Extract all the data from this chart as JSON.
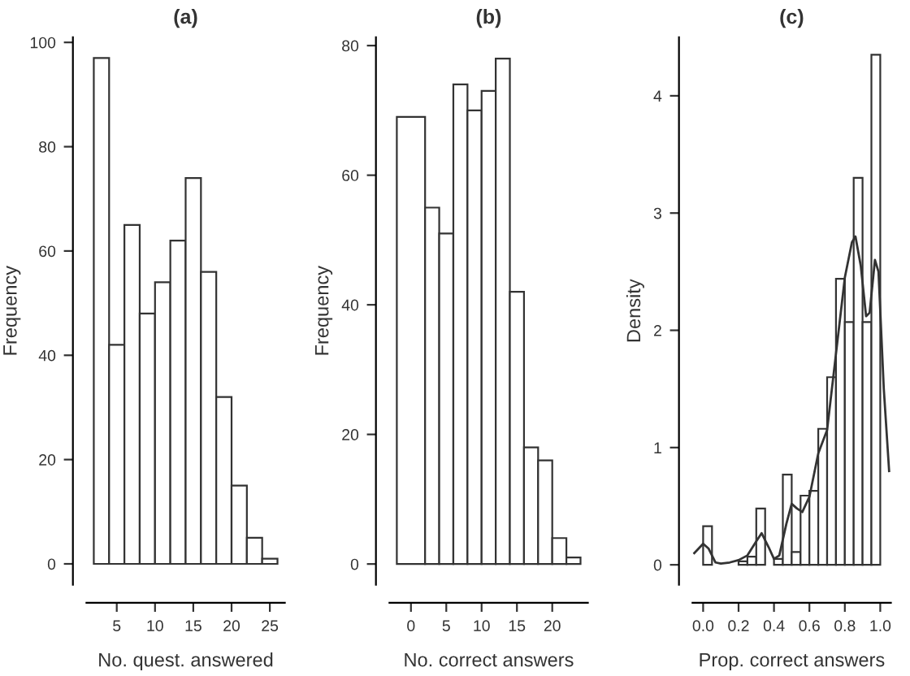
{
  "chart_data": [
    {
      "type": "histogram",
      "title": "(a)",
      "xlabel": "No. quest. answered",
      "ylabel": "Frequency",
      "bins": [
        2,
        4,
        6,
        8,
        10,
        12,
        14,
        16,
        18,
        20,
        22,
        24,
        26
      ],
      "values": [
        97,
        42,
        65,
        48,
        54,
        62,
        74,
        56,
        32,
        15,
        5,
        1
      ],
      "color": "#ffffff",
      "xlim": [
        1.04,
        26.96
      ],
      "xticks": [
        5,
        10,
        15,
        20,
        25
      ],
      "ylim": [
        -4,
        101
      ],
      "yticks": [
        0,
        20,
        40,
        60,
        80,
        100
      ],
      "grid": false
    },
    {
      "type": "histogram",
      "title": "(b)",
      "xlabel": "No. correct answers",
      "ylabel": "Frequency",
      "bins": [
        -2,
        2,
        4,
        6,
        8,
        10,
        12,
        14,
        16,
        18,
        20,
        22,
        24
      ],
      "values": [
        69,
        55,
        51,
        74,
        70,
        73,
        78,
        42,
        18,
        16,
        4,
        1
      ],
      "color": "#ffffff",
      "xlim": [
        -3.04,
        25.04
      ],
      "xticks": [
        0,
        5,
        10,
        15,
        20
      ],
      "ylim": [
        -3.2,
        81.3
      ],
      "yticks": [
        0,
        20,
        40,
        60,
        80
      ],
      "grid": false
    },
    {
      "type": "histogram",
      "title": "(c)",
      "xlabel": "Prop. correct answers",
      "ylabel": "Density",
      "bins": [
        0,
        0.05,
        0.1,
        0.15,
        0.2,
        0.25,
        0.3,
        0.35,
        0.4,
        0.45,
        0.5,
        0.55,
        0.6,
        0.65,
        0.7,
        0.75,
        0.8,
        0.85,
        0.9,
        0.95,
        1.0
      ],
      "values": [
        0.33,
        0,
        null,
        null,
        0.03,
        0.07,
        0.48,
        0,
        0.05,
        0.77,
        0.11,
        0.59,
        0.63,
        1.16,
        1.6,
        2.44,
        2.07,
        3.3,
        2.07,
        4.35
      ],
      "color": "#ffffff",
      "xlim": [
        -0.06,
        1.06
      ],
      "xticks": [
        {
          "value": 0,
          "label": "0.0"
        },
        0.2,
        0.4,
        0.6,
        0.8,
        {
          "value": 1,
          "label": "1.0"
        }
      ],
      "ylim": [
        -0.17,
        4.5
      ],
      "yticks": [
        0,
        1,
        2,
        3,
        4
      ],
      "grid": false,
      "series": [
        {
          "type": "line",
          "color": "#333333",
          "x": [
            -0.05,
            0.0,
            0.03,
            0.07,
            0.1,
            0.15,
            0.2,
            0.25,
            0.3,
            0.33,
            0.37,
            0.4,
            0.43,
            0.47,
            0.5,
            0.53,
            0.56,
            0.6,
            0.65,
            0.7,
            0.75,
            0.8,
            0.84,
            0.86,
            0.89,
            0.92,
            0.94,
            0.97,
            0.99,
            1.02,
            1.05
          ],
          "values": [
            0.1,
            0.18,
            0.14,
            0.02,
            0.01,
            0.02,
            0.04,
            0.08,
            0.2,
            0.27,
            0.15,
            0.05,
            0.08,
            0.35,
            0.52,
            0.48,
            0.45,
            0.58,
            0.95,
            1.15,
            1.8,
            2.45,
            2.75,
            2.8,
            2.55,
            2.12,
            2.15,
            2.6,
            2.5,
            1.5,
            0.8
          ]
        }
      ]
    }
  ]
}
